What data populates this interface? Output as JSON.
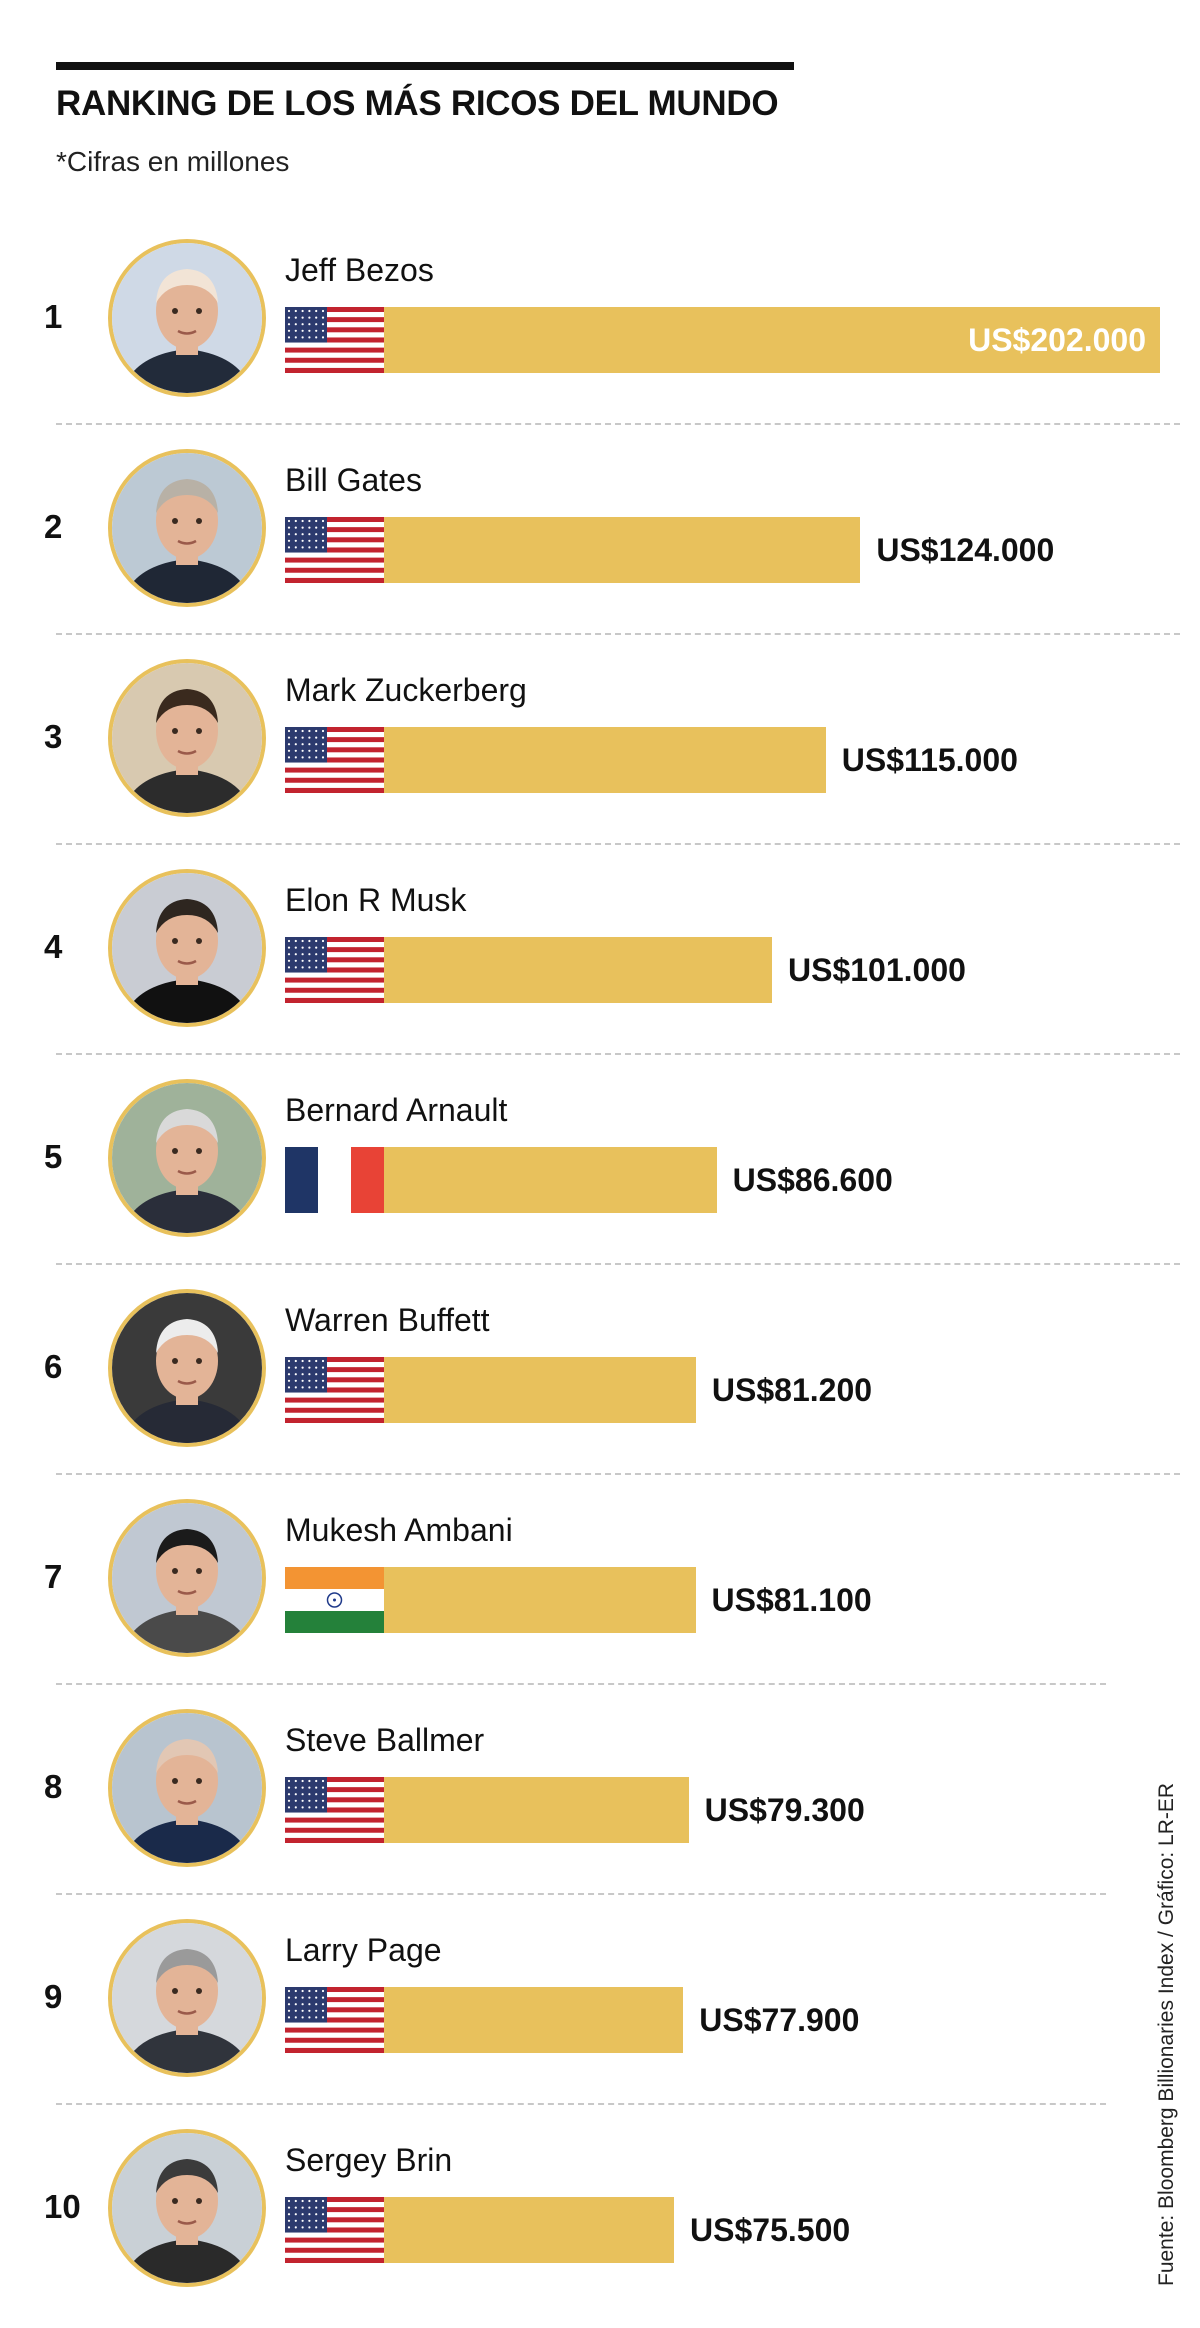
{
  "header": {
    "title": "RANKING DE LOS MÁS RICOS DEL MUNDO",
    "subtitle": "*Cifras en millones"
  },
  "source": "Fuente: Bloomberg Billionaries Index / Gráfico: LR-ER",
  "colors": {
    "bar": "#e8c15c",
    "avatar_ring": "#e8c15c",
    "divider": "#c8c8c8"
  },
  "chart_data": {
    "type": "bar",
    "orientation": "horizontal",
    "title": "RANKING DE LOS MÁS RICOS DEL MUNDO",
    "subtitle": "*Cifras en millones",
    "unit": "US$ millones",
    "xlim": [
      0,
      202000
    ],
    "categories": [
      "Jeff Bezos",
      "Bill Gates",
      "Mark Zuckerberg",
      "Elon R Musk",
      "Bernard Arnault",
      "Warren Buffett",
      "Mukesh Ambani",
      "Steve Ballmer",
      "Larry Page",
      "Sergey Brin"
    ],
    "values": [
      202000,
      124000,
      115000,
      101000,
      86600,
      81200,
      81100,
      79300,
      77900,
      75500
    ],
    "rows": [
      {
        "rank": "1",
        "name": "Jeff Bezos",
        "country": "us",
        "flag_icon": "us-flag-icon",
        "value": 202000,
        "label": "US$202.000",
        "label_inside": true
      },
      {
        "rank": "2",
        "name": "Bill Gates",
        "country": "us",
        "flag_icon": "us-flag-icon",
        "value": 124000,
        "label": "US$124.000"
      },
      {
        "rank": "3",
        "name": "Mark Zuckerberg",
        "country": "us",
        "flag_icon": "us-flag-icon",
        "value": 115000,
        "label": "US$115.000"
      },
      {
        "rank": "4",
        "name": "Elon R Musk",
        "country": "us",
        "flag_icon": "us-flag-icon",
        "value": 101000,
        "label": "US$101.000"
      },
      {
        "rank": "5",
        "name": "Bernard Arnault",
        "country": "fr",
        "flag_icon": "france-flag-icon",
        "value": 86600,
        "label": "US$86.600"
      },
      {
        "rank": "6",
        "name": "Warren Buffett",
        "country": "us",
        "flag_icon": "us-flag-icon",
        "value": 81200,
        "label": "US$81.200"
      },
      {
        "rank": "7",
        "name": "Mukesh Ambani",
        "country": "in",
        "flag_icon": "india-flag-icon",
        "value": 81100,
        "label": "US$81.100"
      },
      {
        "rank": "8",
        "name": "Steve Ballmer",
        "country": "us",
        "flag_icon": "us-flag-icon",
        "value": 79300,
        "label": "US$79.300"
      },
      {
        "rank": "9",
        "name": "Larry Page",
        "country": "us",
        "flag_icon": "us-flag-icon",
        "value": 77900,
        "label": "US$77.900"
      },
      {
        "rank": "10",
        "name": "Sergey Brin",
        "country": "us",
        "flag_icon": "us-flag-icon",
        "value": 75500,
        "label": "US$75.500"
      }
    ]
  }
}
